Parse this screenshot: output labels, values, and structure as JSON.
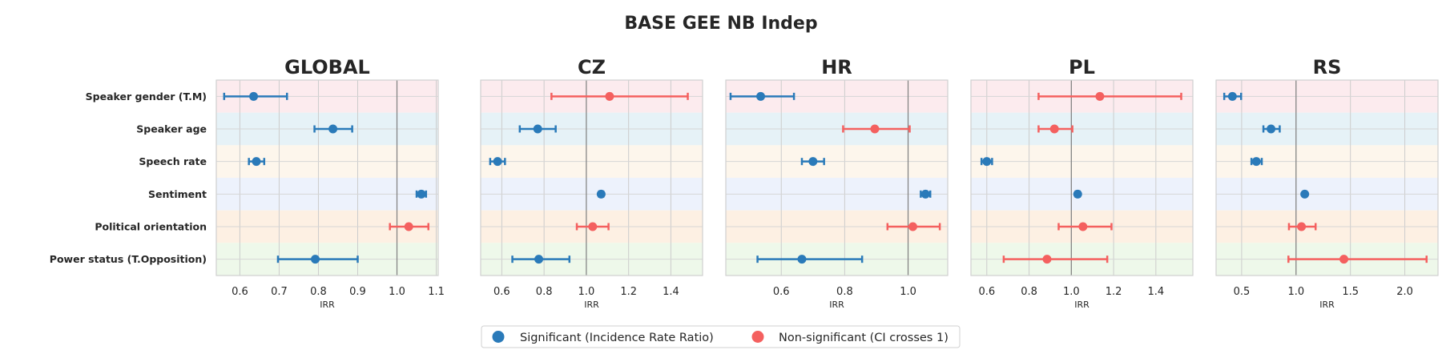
{
  "figure_title": "BASE GEE NB Indep",
  "colors": {
    "significant": "#2a7ab9",
    "non_significant": "#f4605f",
    "reference_line": "#7f7f7f",
    "band_colors": [
      "#fcebee",
      "#e6f2f7",
      "#fdf6ec",
      "#edf2fc",
      "#fdf0e3",
      "#eef8ea"
    ]
  },
  "legend": {
    "significant": "Significant (Incidence Rate Ratio)",
    "non_significant": "Non-significant (CI crosses 1)"
  },
  "chart_data": [
    {
      "type": "scatter",
      "title": "GLOBAL",
      "xlabel": "IRR",
      "xlim": [
        0.54,
        1.105
      ],
      "xticks": [
        "0.6",
        "0.7",
        "0.8",
        "0.9",
        "1.0",
        "1.1"
      ],
      "reference": 1.0,
      "categories": [
        "Speaker gender (T.M)",
        "Speaker age",
        "Speech rate",
        "Sentiment",
        "Political orientation",
        "Power status (T.Opposition)"
      ],
      "estimates": [
        0.635,
        0.837,
        0.642,
        1.062,
        1.03,
        0.792
      ],
      "ci_low": [
        0.56,
        0.79,
        0.623,
        1.05,
        0.982,
        0.697
      ],
      "ci_high": [
        0.72,
        0.886,
        0.662,
        1.074,
        1.08,
        0.9
      ],
      "significant": [
        true,
        true,
        true,
        true,
        false,
        true
      ]
    },
    {
      "type": "scatter",
      "title": "CZ",
      "xlabel": "IRR",
      "xlim": [
        0.5,
        1.55
      ],
      "xticks": [
        "0.6",
        "0.8",
        "1.0",
        "1.2",
        "1.4"
      ],
      "reference": 1.0,
      "categories": [
        "Speaker gender (T.M)",
        "Speaker age",
        "Speech rate",
        "Sentiment",
        "Political orientation",
        "Power status (T.Opposition)"
      ],
      "estimates": [
        1.11,
        0.77,
        0.58,
        1.07,
        1.03,
        0.775
      ],
      "ci_low": [
        0.835,
        0.685,
        0.545,
        1.06,
        0.955,
        0.65
      ],
      "ci_high": [
        1.48,
        0.855,
        0.615,
        1.08,
        1.105,
        0.92
      ],
      "significant": [
        false,
        true,
        true,
        true,
        false,
        true
      ]
    },
    {
      "type": "scatter",
      "title": "HR",
      "xlabel": "IRR",
      "xlim": [
        0.425,
        1.125
      ],
      "xticks": [
        "0.6",
        "0.8",
        "1.0"
      ],
      "reference": 1.0,
      "categories": [
        "Speaker gender (T.M)",
        "Speaker age",
        "Speech rate",
        "Sentiment",
        "Political orientation",
        "Power status (T.Opposition)"
      ],
      "estimates": [
        0.535,
        0.895,
        0.7,
        1.055,
        1.015,
        0.665
      ],
      "ci_low": [
        0.44,
        0.795,
        0.665,
        1.04,
        0.935,
        0.525
      ],
      "ci_high": [
        0.64,
        1.005,
        0.735,
        1.07,
        1.1,
        0.855
      ],
      "significant": [
        true,
        false,
        true,
        true,
        false,
        true
      ]
    },
    {
      "type": "scatter",
      "title": "PL",
      "xlabel": "IRR",
      "xlim": [
        0.525,
        1.575
      ],
      "xticks": [
        "0.6",
        "0.8",
        "1.0",
        "1.2",
        "1.4"
      ],
      "reference": 1.0,
      "categories": [
        "Speaker gender (T.M)",
        "Speaker age",
        "Speech rate",
        "Sentiment",
        "Political orientation",
        "Power status (T.Opposition)"
      ],
      "estimates": [
        1.135,
        0.92,
        0.6,
        1.03,
        1.055,
        0.885
      ],
      "ci_low": [
        0.845,
        0.845,
        0.575,
        1.02,
        0.94,
        0.68
      ],
      "ci_high": [
        1.52,
        1.005,
        0.625,
        1.04,
        1.19,
        1.17
      ],
      "significant": [
        false,
        false,
        true,
        true,
        false,
        false
      ]
    },
    {
      "type": "scatter",
      "title": "RS",
      "xlabel": "IRR",
      "xlim": [
        0.265,
        2.305
      ],
      "xticks": [
        "0.5",
        "1.0",
        "1.5",
        "2.0"
      ],
      "reference": 1.0,
      "categories": [
        "Speaker gender (T.M)",
        "Speaker age",
        "Speech rate",
        "Sentiment",
        "Political orientation",
        "Power status (T.Opposition)"
      ],
      "estimates": [
        0.415,
        0.77,
        0.635,
        1.08,
        1.05,
        1.44
      ],
      "ci_low": [
        0.34,
        0.7,
        0.59,
        1.07,
        0.935,
        0.93
      ],
      "ci_high": [
        0.495,
        0.85,
        0.685,
        1.09,
        1.18,
        2.2
      ],
      "significant": [
        true,
        true,
        true,
        true,
        false,
        false
      ]
    }
  ]
}
